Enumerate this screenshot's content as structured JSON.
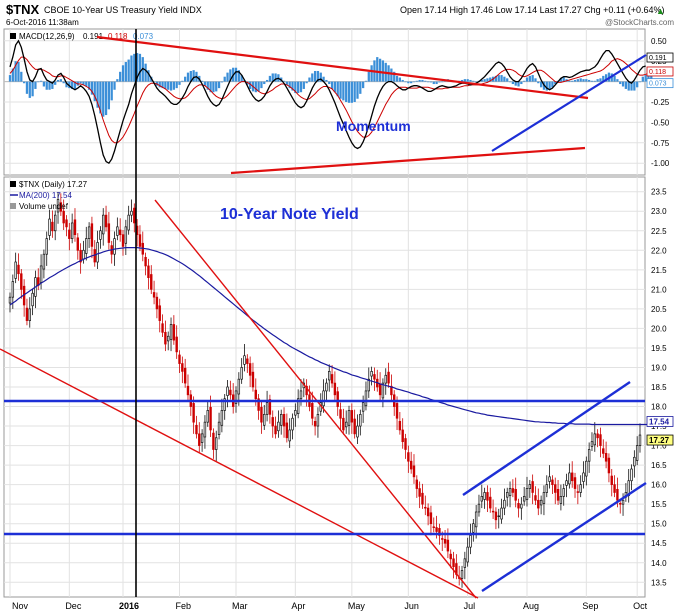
{
  "header": {
    "symbol": "$TNX",
    "description": "CBOE 10-Year US Treasury Yield INDX",
    "date": "6-Oct-2016 11:38am",
    "quote": "Open 17.14  High 17.46  Low 17.14  Last 17.27  Chg +0.11 (+0.64%)",
    "change_arrow": "▲",
    "watermark": "@StockCharts.com"
  },
  "colors": {
    "price_up": "#111111",
    "price_down": "#cc0000",
    "macd_line": "#000000",
    "signal_line": "#cc0000",
    "histogram": "#3b8fd8",
    "ma_line": "#1a1aa0",
    "trend_red": "#e01010",
    "trend_blue": "#1d2fd6",
    "annotation_blue": "#1d2fd6"
  },
  "annotations": {
    "momentum": "Momentum",
    "yield": "10-Year Note Yield"
  },
  "chart_data": [
    {
      "type": "line",
      "panel": "MACD",
      "legend": {
        "label": "MACD(12,26,9)",
        "macd": "0.191",
        "signal": "0.118",
        "hist": "0.073"
      },
      "ylim": [
        -1.12,
        0.62
      ],
      "yticks": [
        "0.50",
        "0.25",
        "0.00",
        "-0.25",
        "-0.50",
        "-0.75",
        "-1.00"
      ],
      "last_value_labels": [
        "0.191",
        "0.118",
        "0.073"
      ],
      "month_starts": [
        0,
        21,
        40,
        60,
        80,
        101,
        121,
        141,
        162,
        183,
        204,
        222
      ],
      "macd": [
        0.18,
        0.3,
        0.45,
        0.5,
        0.42,
        0.28,
        0.12,
        0.02,
        0.0,
        0.06,
        0.15,
        0.16,
        0.08,
        0.02,
        0.0,
        -0.02,
        0.02,
        0.08,
        0.1,
        0.05,
        -0.02,
        -0.05,
        -0.08,
        -0.1,
        -0.08,
        -0.05,
        -0.08,
        -0.12,
        -0.18,
        -0.28,
        -0.42,
        -0.58,
        -0.75,
        -0.9,
        -0.98,
        -1.0,
        -0.95,
        -0.85,
        -0.72,
        -0.6,
        -0.48,
        -0.38,
        -0.28,
        -0.15,
        -0.05,
        0.05,
        0.12,
        0.16,
        0.14,
        0.1,
        0.04,
        -0.02,
        -0.08,
        -0.12,
        -0.15,
        -0.18,
        -0.22,
        -0.26,
        -0.28,
        -0.28,
        -0.25,
        -0.2,
        -0.14,
        -0.06,
        0.0,
        0.05,
        0.06,
        0.03,
        -0.03,
        -0.1,
        -0.18,
        -0.24,
        -0.28,
        -0.3,
        -0.28,
        -0.22,
        -0.14,
        -0.06,
        0.02,
        0.08,
        0.12,
        0.12,
        0.08,
        0.02,
        -0.05,
        -0.12,
        -0.18,
        -0.22,
        -0.24,
        -0.22,
        -0.18,
        -0.12,
        -0.05,
        0.0,
        0.03,
        0.04,
        0.02,
        -0.02,
        -0.08,
        -0.14,
        -0.2,
        -0.26,
        -0.3,
        -0.32,
        -0.3,
        -0.24,
        -0.16,
        -0.08,
        -0.02,
        0.02,
        0.03,
        0.0,
        -0.04,
        -0.1,
        -0.18,
        -0.26,
        -0.35,
        -0.44,
        -0.52,
        -0.6,
        -0.68,
        -0.75,
        -0.8,
        -0.82,
        -0.8,
        -0.74,
        -0.65,
        -0.54,
        -0.42,
        -0.3,
        -0.2,
        -0.12,
        -0.06,
        -0.02,
        0.0,
        0.0,
        -0.02,
        -0.05,
        -0.08,
        -0.1,
        -0.1,
        -0.08,
        -0.06,
        -0.05,
        -0.05,
        -0.06,
        -0.08,
        -0.1,
        -0.12,
        -0.12,
        -0.1,
        -0.08,
        -0.06,
        -0.05,
        -0.06,
        -0.07,
        -0.07,
        -0.06,
        -0.05,
        -0.03,
        -0.02,
        -0.02,
        -0.03,
        -0.04,
        -0.03,
        -0.02,
        0.0,
        0.03,
        0.06,
        0.1,
        0.14,
        0.18,
        0.22,
        0.24,
        0.22,
        0.18,
        0.12,
        0.06,
        0.02,
        0.0,
        0.0,
        0.04,
        0.1,
        0.16,
        0.2,
        0.22,
        0.18,
        0.1,
        0.02,
        -0.04,
        -0.08,
        -0.1,
        -0.08,
        -0.04,
        0.0,
        0.04,
        0.06,
        0.06,
        0.05,
        0.06,
        0.08,
        0.1,
        0.12,
        0.13,
        0.14,
        0.14,
        0.16,
        0.18,
        0.22,
        0.28,
        0.34,
        0.38,
        0.38,
        0.34,
        0.28,
        0.22,
        0.16,
        0.1,
        0.04,
        0.0,
        -0.02,
        0.02,
        0.08,
        0.14,
        0.18,
        0.191
      ],
      "signal": [
        0.1,
        0.14,
        0.2,
        0.26,
        0.3,
        0.3,
        0.27,
        0.22,
        0.18,
        0.15,
        0.15,
        0.15,
        0.14,
        0.12,
        0.1,
        0.07,
        0.06,
        0.06,
        0.07,
        0.07,
        0.05,
        0.03,
        0.01,
        -0.01,
        -0.03,
        -0.03,
        -0.04,
        -0.06,
        -0.08,
        -0.12,
        -0.18,
        -0.26,
        -0.36,
        -0.47,
        -0.57,
        -0.66,
        -0.72,
        -0.75,
        -0.75,
        -0.72,
        -0.68,
        -0.62,
        -0.55,
        -0.47,
        -0.39,
        -0.3,
        -0.22,
        -0.14,
        -0.08,
        -0.04,
        -0.02,
        -0.02,
        -0.03,
        -0.05,
        -0.07,
        -0.09,
        -0.12,
        -0.15,
        -0.18,
        -0.2,
        -0.21,
        -0.21,
        -0.2,
        -0.17,
        -0.13,
        -0.09,
        -0.06,
        -0.04,
        -0.04,
        -0.05,
        -0.08,
        -0.11,
        -0.15,
        -0.18,
        -0.2,
        -0.21,
        -0.2,
        -0.17,
        -0.13,
        -0.09,
        -0.05,
        -0.02,
        0.0,
        0.0,
        -0.01,
        -0.03,
        -0.06,
        -0.09,
        -0.12,
        -0.14,
        -0.15,
        -0.14,
        -0.12,
        -0.1,
        -0.07,
        -0.05,
        -0.03,
        -0.03,
        -0.04,
        -0.06,
        -0.09,
        -0.12,
        -0.16,
        -0.19,
        -0.21,
        -0.22,
        -0.21,
        -0.18,
        -0.15,
        -0.11,
        -0.08,
        -0.06,
        -0.06,
        -0.07,
        -0.09,
        -0.13,
        -0.17,
        -0.23,
        -0.29,
        -0.35,
        -0.42,
        -0.49,
        -0.55,
        -0.61,
        -0.65,
        -0.68,
        -0.68,
        -0.66,
        -0.62,
        -0.56,
        -0.49,
        -0.42,
        -0.35,
        -0.28,
        -0.22,
        -0.16,
        -0.12,
        -0.09,
        -0.07,
        -0.07,
        -0.07,
        -0.08,
        -0.08,
        -0.08,
        -0.08,
        -0.07,
        -0.07,
        -0.07,
        -0.07,
        -0.08,
        -0.09,
        -0.09,
        -0.09,
        -0.09,
        -0.08,
        -0.08,
        -0.07,
        -0.07,
        -0.07,
        -0.07,
        -0.06,
        -0.05,
        -0.05,
        -0.04,
        -0.04,
        -0.04,
        -0.04,
        -0.03,
        -0.02,
        -0.01,
        0.01,
        0.03,
        0.06,
        0.09,
        0.12,
        0.14,
        0.15,
        0.15,
        0.14,
        0.12,
        0.09,
        0.07,
        0.06,
        0.07,
        0.09,
        0.11,
        0.13,
        0.14,
        0.14,
        0.12,
        0.09,
        0.06,
        0.03,
        0.0,
        -0.01,
        -0.01,
        0.0,
        0.01,
        0.02,
        0.03,
        0.04,
        0.05,
        0.06,
        0.07,
        0.08,
        0.09,
        0.1,
        0.11,
        0.12,
        0.13,
        0.15,
        0.18,
        0.21,
        0.25,
        0.27,
        0.28,
        0.27,
        0.25,
        0.22,
        0.19,
        0.15,
        0.12,
        0.09,
        0.08,
        0.08,
        0.09,
        0.1,
        0.118
      ],
      "hist": [
        0.08,
        0.16,
        0.25,
        0.24,
        0.12,
        -0.02,
        -0.15,
        -0.2,
        -0.18,
        -0.09,
        0.0,
        0.01,
        -0.06,
        -0.1,
        -0.1,
        -0.09,
        -0.04,
        0.02,
        0.03,
        -0.02,
        -0.07,
        -0.08,
        -0.09,
        -0.09,
        -0.05,
        -0.02,
        -0.04,
        -0.06,
        -0.1,
        -0.16,
        -0.24,
        -0.32,
        -0.39,
        -0.43,
        -0.41,
        -0.34,
        -0.23,
        -0.1,
        0.03,
        0.12,
        0.2,
        0.24,
        0.27,
        0.32,
        0.34,
        0.35,
        0.34,
        0.3,
        0.22,
        0.14,
        0.06,
        0.0,
        -0.05,
        -0.07,
        -0.08,
        -0.09,
        -0.1,
        -0.11,
        -0.1,
        -0.08,
        -0.04,
        0.01,
        0.06,
        0.11,
        0.13,
        0.14,
        0.12,
        0.07,
        0.01,
        -0.05,
        -0.1,
        -0.13,
        -0.13,
        -0.12,
        -0.08,
        -0.01,
        0.06,
        0.11,
        0.15,
        0.17,
        0.17,
        0.14,
        0.08,
        0.02,
        -0.04,
        -0.09,
        -0.12,
        -0.13,
        -0.12,
        -0.08,
        -0.03,
        0.02,
        0.07,
        0.1,
        0.1,
        0.09,
        0.05,
        0.01,
        -0.04,
        -0.08,
        -0.11,
        -0.14,
        -0.14,
        -0.13,
        -0.09,
        -0.02,
        0.05,
        0.1,
        0.13,
        0.13,
        0.11,
        0.06,
        0.02,
        -0.03,
        -0.09,
        -0.13,
        -0.18,
        -0.21,
        -0.23,
        -0.25,
        -0.26,
        -0.26,
        -0.25,
        -0.21,
        -0.15,
        -0.08,
        0.01,
        0.12,
        0.2,
        0.26,
        0.3,
        0.28,
        0.26,
        0.23,
        0.2,
        0.16,
        0.12,
        0.07,
        0.05,
        0.02,
        0.0,
        -0.02,
        -0.02,
        0.0,
        0.01,
        0.02,
        0.02,
        0.01,
        0.0,
        -0.01,
        -0.03,
        -0.03,
        -0.01,
        0.0,
        0.02,
        0.03,
        0.02,
        0.0,
        0.0,
        0.01,
        0.02,
        0.03,
        0.03,
        0.02,
        0.01,
        0.0,
        0.01,
        0.02,
        0.03,
        0.04,
        0.05,
        0.06,
        0.07,
        0.08,
        0.08,
        0.06,
        0.04,
        0.0,
        -0.03,
        -0.05,
        -0.06,
        -0.03,
        0.01,
        0.05,
        0.07,
        0.08,
        0.04,
        -0.02,
        -0.07,
        -0.1,
        -0.11,
        -0.1,
        -0.07,
        -0.03,
        0.01,
        0.04,
        0.05,
        0.03,
        0.01,
        0.01,
        0.02,
        0.03,
        0.04,
        0.03,
        0.03,
        0.02,
        0.01,
        0.01,
        0.03,
        0.04,
        0.07,
        0.09,
        0.11,
        0.1,
        0.07,
        0.03,
        -0.03,
        -0.06,
        -0.09,
        -0.11,
        -0.11,
        -0.11,
        -0.07,
        0.0,
        0.06,
        0.08,
        0.08,
        0.073
      ]
    },
    {
      "type": "candlestick",
      "panel": "Price",
      "legend": {
        "title": "$TNX (Daily) 17.27",
        "ma": "MA(200) 17.54",
        "volume": "Volume undef"
      },
      "ylim": [
        13.2,
        23.8
      ],
      "yticks": [
        "23.5",
        "23.0",
        "22.5",
        "22.0",
        "21.5",
        "21.0",
        "20.5",
        "20.0",
        "19.5",
        "19.0",
        "18.5",
        "18.0",
        "17.5",
        "17.0",
        "16.5",
        "16.0",
        "15.5",
        "15.0",
        "14.5",
        "14.0",
        "13.5"
      ],
      "last_value_labels": [
        "17.54",
        "17.27"
      ],
      "xlabels": [
        "Nov",
        "Dec",
        "2016",
        "Feb",
        "Mar",
        "Apr",
        "May",
        "Jun",
        "Jul",
        "Aug",
        "Sep",
        "Oct"
      ],
      "month_starts": [
        0,
        21,
        40,
        60,
        80,
        101,
        121,
        141,
        162,
        183,
        204,
        222
      ],
      "close": [
        20.8,
        21.2,
        21.7,
        21.4,
        21.0,
        20.6,
        20.2,
        20.5,
        20.9,
        21.3,
        21.1,
        21.6,
        21.9,
        22.3,
        22.8,
        22.5,
        22.9,
        23.3,
        23.0,
        22.7,
        22.6,
        22.3,
        22.7,
        22.4,
        22.0,
        21.7,
        22.0,
        22.3,
        22.6,
        22.1,
        21.7,
        22.2,
        22.5,
        22.9,
        22.6,
        22.2,
        21.9,
        22.3,
        22.6,
        22.4,
        22.1,
        22.6,
        22.9,
        23.0,
        22.7,
        22.4,
        22.1,
        21.9,
        21.6,
        21.3,
        21.0,
        20.8,
        20.5,
        20.2,
        19.9,
        19.6,
        19.8,
        20.1,
        19.7,
        19.4,
        19.1,
        18.9,
        18.6,
        18.3,
        18.0,
        17.6,
        17.3,
        17.0,
        17.3,
        17.6,
        17.9,
        17.4,
        16.9,
        17.2,
        17.6,
        17.9,
        18.2,
        18.5,
        18.3,
        18.0,
        18.4,
        18.7,
        19.0,
        19.3,
        19.1,
        18.8,
        18.5,
        18.2,
        17.9,
        17.6,
        17.8,
        18.1,
        17.8,
        17.5,
        17.3,
        17.6,
        17.8,
        17.5,
        17.2,
        17.4,
        17.7,
        17.9,
        18.2,
        18.4,
        18.6,
        18.3,
        18.0,
        17.7,
        17.5,
        17.8,
        18.1,
        18.4,
        18.6,
        18.9,
        18.6,
        18.3,
        18.0,
        17.7,
        17.4,
        17.6,
        17.9,
        17.6,
        17.3,
        17.5,
        17.8,
        18.1,
        18.4,
        18.7,
        18.9,
        18.7,
        18.5,
        18.3,
        18.6,
        18.8,
        18.6,
        18.3,
        18.0,
        17.7,
        17.4,
        17.1,
        16.9,
        16.6,
        16.4,
        16.2,
        15.9,
        15.7,
        15.5,
        15.4,
        15.2,
        15.0,
        14.9,
        14.8,
        14.7,
        14.6,
        14.5,
        14.3,
        14.1,
        13.9,
        13.7,
        13.6,
        13.8,
        14.1,
        14.4,
        14.7,
        15.0,
        15.3,
        15.5,
        15.7,
        15.8,
        15.6,
        15.4,
        15.3,
        15.1,
        15.2,
        15.4,
        15.6,
        15.8,
        15.9,
        15.8,
        15.6,
        15.4,
        15.5,
        15.7,
        15.9,
        16.0,
        15.8,
        15.6,
        15.4,
        15.6,
        15.8,
        16.0,
        16.2,
        16.0,
        15.8,
        15.6,
        15.7,
        15.9,
        16.1,
        16.3,
        16.1,
        15.9,
        15.8,
        16.0,
        16.3,
        16.6,
        16.9,
        17.1,
        17.3,
        17.2,
        17.0,
        16.8,
        16.6,
        16.3,
        16.0,
        15.8,
        15.6,
        15.5,
        15.6,
        15.8,
        16.1,
        16.4,
        16.7,
        17.0,
        17.27
      ],
      "ma200": [
        20.6,
        20.65,
        20.7,
        20.76,
        20.81,
        20.86,
        20.91,
        20.96,
        21.01,
        21.06,
        21.11,
        21.16,
        21.2,
        21.25,
        21.3,
        21.34,
        21.38,
        21.43,
        21.47,
        21.51,
        21.55,
        21.59,
        21.63,
        21.66,
        21.7,
        21.73,
        21.77,
        21.8,
        21.83,
        21.86,
        21.88,
        21.91,
        21.93,
        21.96,
        21.98,
        22.0,
        22.01,
        22.03,
        22.04,
        22.05,
        22.06,
        22.07,
        22.07,
        22.07,
        22.07,
        22.07,
        22.06,
        22.05,
        22.04,
        22.03,
        22.01,
        21.99,
        21.97,
        21.94,
        21.92,
        21.89,
        21.86,
        21.82,
        21.78,
        21.74,
        21.7,
        21.66,
        21.61,
        21.56,
        21.51,
        21.46,
        21.4,
        21.35,
        21.29,
        21.23,
        21.17,
        21.11,
        21.05,
        20.99,
        20.93,
        20.87,
        20.81,
        20.75,
        20.69,
        20.63,
        20.57,
        20.51,
        20.45,
        20.39,
        20.33,
        20.27,
        20.21,
        20.16,
        20.1,
        20.05,
        19.99,
        19.94,
        19.89,
        19.84,
        19.79,
        19.74,
        19.69,
        19.64,
        19.6,
        19.55,
        19.51,
        19.47,
        19.43,
        19.39,
        19.35,
        19.31,
        19.27,
        19.24,
        19.2,
        19.17,
        19.13,
        19.1,
        19.07,
        19.04,
        19.01,
        18.98,
        18.95,
        18.92,
        18.89,
        18.87,
        18.84,
        18.81,
        18.79,
        18.77,
        18.74,
        18.72,
        18.7,
        18.67,
        18.65,
        18.63,
        18.61,
        18.58,
        18.56,
        18.54,
        18.52,
        18.5,
        18.48,
        18.45,
        18.43,
        18.41,
        18.39,
        18.37,
        18.34,
        18.32,
        18.3,
        18.28,
        18.25,
        18.23,
        18.21,
        18.18,
        18.16,
        18.14,
        18.11,
        18.09,
        18.07,
        18.04,
        18.02,
        18.0,
        17.98,
        17.96,
        17.94,
        17.92,
        17.9,
        17.88,
        17.86,
        17.84,
        17.83,
        17.81,
        17.8,
        17.78,
        17.77,
        17.76,
        17.75,
        17.74,
        17.73,
        17.72,
        17.71,
        17.7,
        17.69,
        17.68,
        17.67,
        17.66,
        17.65,
        17.64,
        17.63,
        17.62,
        17.61,
        17.61,
        17.6,
        17.6,
        17.59,
        17.59,
        17.58,
        17.58,
        17.57,
        17.57,
        17.57,
        17.56,
        17.56,
        17.56,
        17.55,
        17.55,
        17.55,
        17.55,
        17.55,
        17.55,
        17.54,
        17.54,
        17.54,
        17.54,
        17.54,
        17.54,
        17.54,
        17.54,
        17.54,
        17.54,
        17.54,
        17.54,
        17.54,
        17.54,
        17.54,
        17.54,
        17.54,
        17.54,
        17.54,
        17.54,
        17.54
      ]
    }
  ]
}
